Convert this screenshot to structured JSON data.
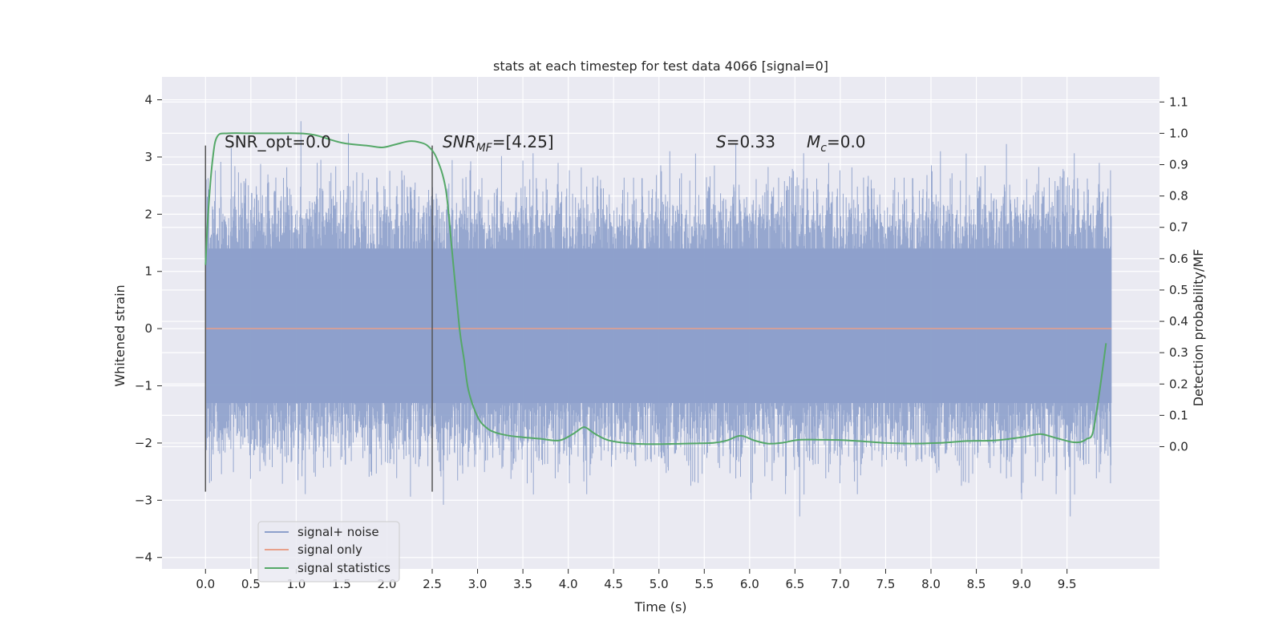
{
  "chart_data": {
    "type": "line",
    "title": "stats at each timestep for test data 4066 [signal=0]",
    "xlabel": "Time (s)",
    "ylabel": "Whitened strain",
    "y2label": "Detection probability/MF",
    "xlim": [
      -0.48,
      10.52
    ],
    "ylim": [
      -4.2,
      4.4
    ],
    "y2lim": [
      -0.39,
      1.18
    ],
    "x_ticks": [
      "0.0",
      "0.5",
      "1.0",
      "1.5",
      "2.0",
      "2.5",
      "3.0",
      "3.5",
      "4.0",
      "4.5",
      "5.0",
      "5.5",
      "6.0",
      "6.5",
      "7.0",
      "7.5",
      "8.0",
      "8.5",
      "9.0",
      "9.5"
    ],
    "y_ticks": [
      "4",
      "3",
      "2",
      "1",
      "0",
      "−1",
      "−2",
      "−3",
      "−4"
    ],
    "y2_ticks": [
      "1.1",
      "1.0",
      "0.9",
      "0.8",
      "0.7",
      "0.6",
      "0.5",
      "0.4",
      "0.3",
      "0.2",
      "0.1",
      "0.0"
    ],
    "grid": true,
    "annotations": {
      "snr_opt": "SNR_opt=0.0",
      "snr_mf_main": "SNR",
      "snr_mf_sub": "MF",
      "snr_mf_rest": "=[4.25]",
      "s_main": "S",
      "s_rest": "=0.33",
      "mc_main": "M",
      "mc_sub": "c",
      "mc_rest": "=0.0"
    },
    "vlines": [
      {
        "x": 0.0,
        "y_from": -2.85,
        "y_to": 3.2
      },
      {
        "x": 2.5,
        "y_from": -2.85,
        "y_to": 3.2
      }
    ],
    "legend": {
      "position": "lower-left",
      "items": [
        "signal+ noise",
        "signal only",
        "signal statistics"
      ]
    },
    "series": [
      {
        "name": "signal+ noise",
        "color": "#8da0cb",
        "kind": "noise",
        "x_range": [
          0.0,
          9.99
        ],
        "typical_band": [
          -1.3,
          1.4
        ],
        "max": 4.05,
        "min": -3.7
      },
      {
        "name": "signal only",
        "color": "#e8a08a",
        "x": [
          0.0,
          9.99
        ],
        "y": [
          0.0,
          0.0
        ]
      },
      {
        "name": "signal statistics",
        "color": "#55a868",
        "axis": "right",
        "x": [
          0.0,
          0.03,
          0.08,
          0.13,
          0.25,
          0.5,
          0.8,
          1.0,
          1.2,
          1.5,
          1.8,
          1.95,
          2.1,
          2.25,
          2.35,
          2.45,
          2.55,
          2.65,
          2.72,
          2.8,
          2.85,
          2.9,
          3.0,
          3.1,
          3.2,
          3.35,
          3.5,
          3.7,
          3.9,
          4.05,
          4.15,
          4.2,
          4.3,
          4.45,
          4.7,
          5.0,
          5.3,
          5.6,
          5.75,
          5.9,
          6.05,
          6.2,
          6.35,
          6.55,
          6.8,
          7.1,
          7.5,
          7.8,
          8.1,
          8.4,
          8.7,
          9.0,
          9.2,
          9.35,
          9.55,
          9.65,
          9.72,
          9.78,
          9.83,
          9.88,
          9.93
        ],
        "y": [
          0.58,
          0.75,
          0.92,
          0.99,
          1.0,
          1.0,
          1.0,
          1.0,
          0.995,
          0.97,
          0.96,
          0.955,
          0.965,
          0.975,
          0.972,
          0.96,
          0.92,
          0.82,
          0.62,
          0.38,
          0.28,
          0.18,
          0.095,
          0.06,
          0.045,
          0.035,
          0.03,
          0.025,
          0.02,
          0.04,
          0.06,
          0.06,
          0.04,
          0.02,
          0.01,
          0.008,
          0.01,
          0.012,
          0.02,
          0.035,
          0.02,
          0.01,
          0.012,
          0.022,
          0.022,
          0.02,
          0.012,
          0.01,
          0.012,
          0.018,
          0.02,
          0.03,
          0.04,
          0.03,
          0.015,
          0.015,
          0.025,
          0.04,
          0.12,
          0.22,
          0.33
        ]
      }
    ]
  }
}
